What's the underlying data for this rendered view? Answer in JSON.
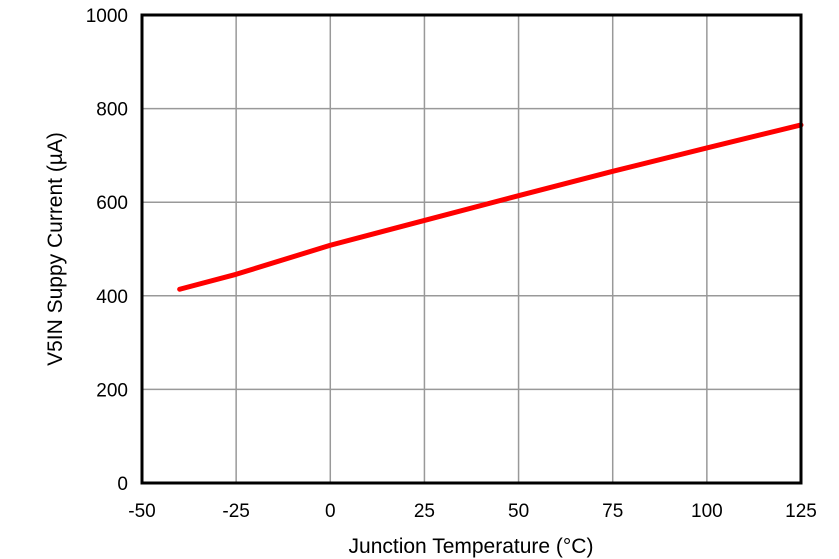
{
  "chart_data": {
    "type": "line",
    "title": "",
    "xlabel": "Junction Temperature (°C)",
    "ylabel": "V5IN Suppy Current (µA)",
    "xlim": [
      -50,
      125
    ],
    "ylim": [
      0,
      1000
    ],
    "xticks": [
      -50,
      -25,
      0,
      25,
      50,
      75,
      100,
      125
    ],
    "yticks": [
      0,
      200,
      400,
      600,
      800,
      1000
    ],
    "grid": true,
    "legend": null,
    "series": [
      {
        "name": "V5IN Supply Current",
        "color": "#ff0000",
        "x": [
          -40,
          -25,
          0,
          25,
          50,
          75,
          100,
          125
        ],
        "y": [
          414,
          446,
          508,
          561,
          614,
          666,
          716,
          765
        ]
      }
    ]
  }
}
